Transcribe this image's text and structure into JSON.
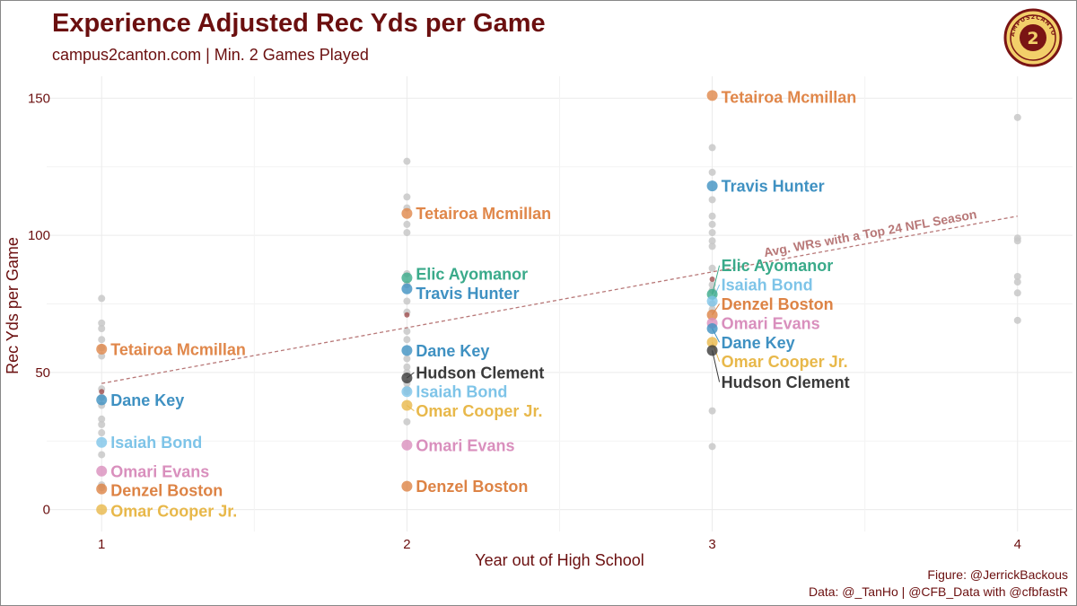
{
  "header": {
    "title": "Experience Adjusted Rec Yds per Game",
    "subtitle": "campus2canton.com | Min. 2 Games Played"
  },
  "caption": {
    "line1": "Figure: @JerrickBackous",
    "line2": "Data: @_TanHo | @CFB_Data with @cfbfastR"
  },
  "logo": {
    "text": "CAMPUS2CANTON",
    "numeral": "2"
  },
  "colors": {
    "title": "#6b0f0f",
    "background_point": "#c8c8c8",
    "trend": "#b87878",
    "Tetairoa Mcmillan": "#e0874a",
    "Travis Hunter": "#3f91c2",
    "Elic Ayomanor": "#3aaa8a",
    "Isaiah Bond": "#7ec4e8",
    "Denzel Boston": "#dd8345",
    "Omari Evans": "#d98fbd",
    "Dane Key": "#3f91c2",
    "Omar Cooper Jr.": "#e8b84a",
    "Hudson Clement": "#3a3a3a"
  },
  "chart_data": {
    "type": "scatter",
    "xlabel": "Year out of High School",
    "ylabel": "Rec Yds per Game",
    "xlim": [
      0.82,
      4.18
    ],
    "ylim": [
      -8,
      158
    ],
    "x_ticks": [
      1,
      2,
      3,
      4
    ],
    "y_ticks": [
      0,
      50,
      100,
      150
    ],
    "grid": true,
    "trend": {
      "label": "Avg. WRs with a Top 24 NFL Season",
      "x": [
        1,
        4
      ],
      "y": [
        46,
        107
      ]
    },
    "background_points": [
      {
        "x": 1,
        "y": 77
      },
      {
        "x": 1,
        "y": 68
      },
      {
        "x": 1,
        "y": 66
      },
      {
        "x": 1,
        "y": 62
      },
      {
        "x": 1,
        "y": 59
      },
      {
        "x": 1,
        "y": 56
      },
      {
        "x": 1,
        "y": 44
      },
      {
        "x": 1,
        "y": 41
      },
      {
        "x": 1,
        "y": 38
      },
      {
        "x": 1,
        "y": 33
      },
      {
        "x": 1,
        "y": 31
      },
      {
        "x": 1,
        "y": 28
      },
      {
        "x": 1,
        "y": 20
      },
      {
        "x": 1,
        "y": 9
      },
      {
        "x": 1,
        "y": 8
      },
      {
        "x": 2,
        "y": 127
      },
      {
        "x": 2,
        "y": 114
      },
      {
        "x": 2,
        "y": 110
      },
      {
        "x": 2,
        "y": 104
      },
      {
        "x": 2,
        "y": 101
      },
      {
        "x": 2,
        "y": 86
      },
      {
        "x": 2,
        "y": 82
      },
      {
        "x": 2,
        "y": 76
      },
      {
        "x": 2,
        "y": 72
      },
      {
        "x": 2,
        "y": 65
      },
      {
        "x": 2,
        "y": 62
      },
      {
        "x": 2,
        "y": 55
      },
      {
        "x": 2,
        "y": 52
      },
      {
        "x": 2,
        "y": 50
      },
      {
        "x": 2,
        "y": 46
      },
      {
        "x": 2,
        "y": 44
      },
      {
        "x": 2,
        "y": 43
      },
      {
        "x": 2,
        "y": 32
      },
      {
        "x": 3,
        "y": 132
      },
      {
        "x": 3,
        "y": 123
      },
      {
        "x": 3,
        "y": 113
      },
      {
        "x": 3,
        "y": 107
      },
      {
        "x": 3,
        "y": 104
      },
      {
        "x": 3,
        "y": 101
      },
      {
        "x": 3,
        "y": 98
      },
      {
        "x": 3,
        "y": 96
      },
      {
        "x": 3,
        "y": 88
      },
      {
        "x": 3,
        "y": 82
      },
      {
        "x": 3,
        "y": 80
      },
      {
        "x": 3,
        "y": 75
      },
      {
        "x": 3,
        "y": 73
      },
      {
        "x": 3,
        "y": 36
      },
      {
        "x": 3,
        "y": 23
      },
      {
        "x": 4,
        "y": 143
      },
      {
        "x": 4,
        "y": 99
      },
      {
        "x": 4,
        "y": 98
      },
      {
        "x": 4,
        "y": 85
      },
      {
        "x": 4,
        "y": 83
      },
      {
        "x": 4,
        "y": 79
      },
      {
        "x": 4,
        "y": 69
      }
    ],
    "small_points": [
      {
        "x": 1,
        "y": 43,
        "color": "#a05050"
      },
      {
        "x": 2,
        "y": 71,
        "color": "#a05050"
      },
      {
        "x": 3,
        "y": 84,
        "color": "#a05050"
      }
    ],
    "series": [
      {
        "name": "Tetairoa Mcmillan",
        "points": [
          {
            "x": 1,
            "y": 58.5
          },
          {
            "x": 2,
            "y": 108
          },
          {
            "x": 3,
            "y": 151
          }
        ]
      },
      {
        "name": "Travis Hunter",
        "points": [
          {
            "x": 2,
            "y": 80.5
          },
          {
            "x": 3,
            "y": 118
          }
        ]
      },
      {
        "name": "Elic Ayomanor",
        "points": [
          {
            "x": 2,
            "y": 84.5
          },
          {
            "x": 3,
            "y": 78.5
          }
        ]
      },
      {
        "name": "Isaiah Bond",
        "points": [
          {
            "x": 1,
            "y": 24.5
          },
          {
            "x": 2,
            "y": 43
          },
          {
            "x": 3,
            "y": 76
          }
        ]
      },
      {
        "name": "Denzel Boston",
        "points": [
          {
            "x": 1,
            "y": 7.5
          },
          {
            "x": 2,
            "y": 8.5
          },
          {
            "x": 3,
            "y": 71
          }
        ]
      },
      {
        "name": "Omari Evans",
        "points": [
          {
            "x": 1,
            "y": 14
          },
          {
            "x": 2,
            "y": 23.5
          },
          {
            "x": 3,
            "y": 68
          }
        ]
      },
      {
        "name": "Dane Key",
        "points": [
          {
            "x": 1,
            "y": 40
          },
          {
            "x": 2,
            "y": 58
          },
          {
            "x": 3,
            "y": 66
          }
        ]
      },
      {
        "name": "Omar Cooper Jr.",
        "points": [
          {
            "x": 1,
            "y": 0
          },
          {
            "x": 2,
            "y": 38
          },
          {
            "x": 3,
            "y": 61
          }
        ]
      },
      {
        "name": "Hudson Clement",
        "points": [
          {
            "x": 2,
            "y": 48
          },
          {
            "x": 3,
            "y": 58
          }
        ]
      }
    ],
    "labels": [
      {
        "series": "Tetairoa Mcmillan",
        "x": 1,
        "y": 58.5,
        "label_y": 58.5
      },
      {
        "series": "Dane Key",
        "x": 1,
        "y": 40,
        "label_y": 40
      },
      {
        "series": "Isaiah Bond",
        "x": 1,
        "y": 24.5,
        "label_y": 24.5
      },
      {
        "series": "Omari Evans",
        "x": 1,
        "y": 14,
        "label_y": 14
      },
      {
        "series": "Denzel Boston",
        "x": 1,
        "y": 7.5,
        "label_y": 7
      },
      {
        "series": "Omar Cooper Jr.",
        "x": 1,
        "y": 0,
        "label_y": -0.5
      },
      {
        "series": "Tetairoa Mcmillan",
        "x": 2,
        "y": 108,
        "label_y": 108
      },
      {
        "series": "Elic Ayomanor",
        "x": 2,
        "y": 84.5,
        "label_y": 86
      },
      {
        "series": "Travis Hunter",
        "x": 2,
        "y": 80.5,
        "label_y": 79
      },
      {
        "series": "Dane Key",
        "x": 2,
        "y": 58,
        "label_y": 58
      },
      {
        "series": "Hudson Clement",
        "x": 2,
        "y": 48,
        "label_y": 50
      },
      {
        "series": "Isaiah Bond",
        "x": 2,
        "y": 43,
        "label_y": 43
      },
      {
        "series": "Omar Cooper Jr.",
        "x": 2,
        "y": 38,
        "label_y": 36
      },
      {
        "series": "Omari Evans",
        "x": 2,
        "y": 23.5,
        "label_y": 23.5
      },
      {
        "series": "Denzel Boston",
        "x": 2,
        "y": 8.5,
        "label_y": 8.5
      },
      {
        "series": "Tetairoa Mcmillan",
        "x": 3,
        "y": 151,
        "label_y": 150.5
      },
      {
        "series": "Travis Hunter",
        "x": 3,
        "y": 118,
        "label_y": 118
      },
      {
        "series": "Elic Ayomanor",
        "x": 3,
        "y": 78.5,
        "label_y": 89
      },
      {
        "series": "Isaiah Bond",
        "x": 3,
        "y": 76,
        "label_y": 82
      },
      {
        "series": "Denzel Boston",
        "x": 3,
        "y": 71,
        "label_y": 75
      },
      {
        "series": "Omari Evans",
        "x": 3,
        "y": 68,
        "label_y": 68
      },
      {
        "series": "Dane Key",
        "x": 3,
        "y": 66,
        "label_y": 61
      },
      {
        "series": "Omar Cooper Jr.",
        "x": 3,
        "y": 61,
        "label_y": 54
      },
      {
        "series": "Hudson Clement",
        "x": 3,
        "y": 58,
        "label_y": 46.5
      }
    ]
  }
}
